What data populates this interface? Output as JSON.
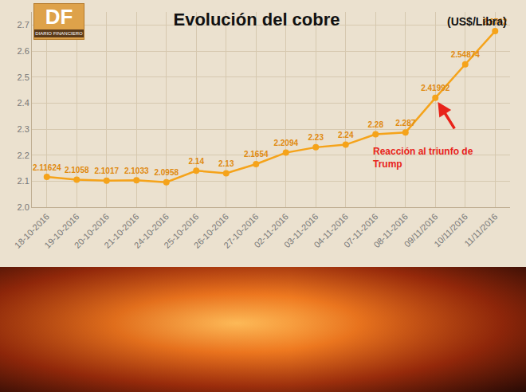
{
  "logo": {
    "text": "DF",
    "subtitle": "DIARIO FINANCIERO"
  },
  "chart_data": {
    "type": "line",
    "title": "Evolución del cobre",
    "subtitle": "(US$/Libra)",
    "categories": [
      "18-10-2016",
      "19-10-2016",
      "20-10-2016",
      "21-10-2016",
      "24-10-2016",
      "25-10-2016",
      "26-10-2016",
      "27-10-2016",
      "02-11-2016",
      "03-11-2016",
      "04-11-2016",
      "07-11-2016",
      "08-11-2016",
      "09/11/2016",
      "10/11/2016",
      "11/11/2016"
    ],
    "values": [
      2.11624,
      2.1058,
      2.1017,
      2.1033,
      2.0958,
      2.14,
      2.13,
      2.1654,
      2.2094,
      2.23,
      2.24,
      2.28,
      2.287,
      2.41992,
      2.54874,
      2.6762
    ],
    "color": "#f5a31a",
    "marker": "circle",
    "line_style": "solid",
    "data_labels": true,
    "ylim": [
      2.0,
      2.75
    ],
    "yticks": [
      {
        "value": 2.0,
        "label": "2.0"
      },
      2.1,
      2.2,
      2.3,
      2.4,
      2.5,
      2.6,
      2.7
    ],
    "grid": true,
    "annotations": [
      {
        "text": "Reacción al triunfo de Trump",
        "category": "09/11/2016",
        "value": 2.41992,
        "color": "#e8231a"
      }
    ]
  }
}
